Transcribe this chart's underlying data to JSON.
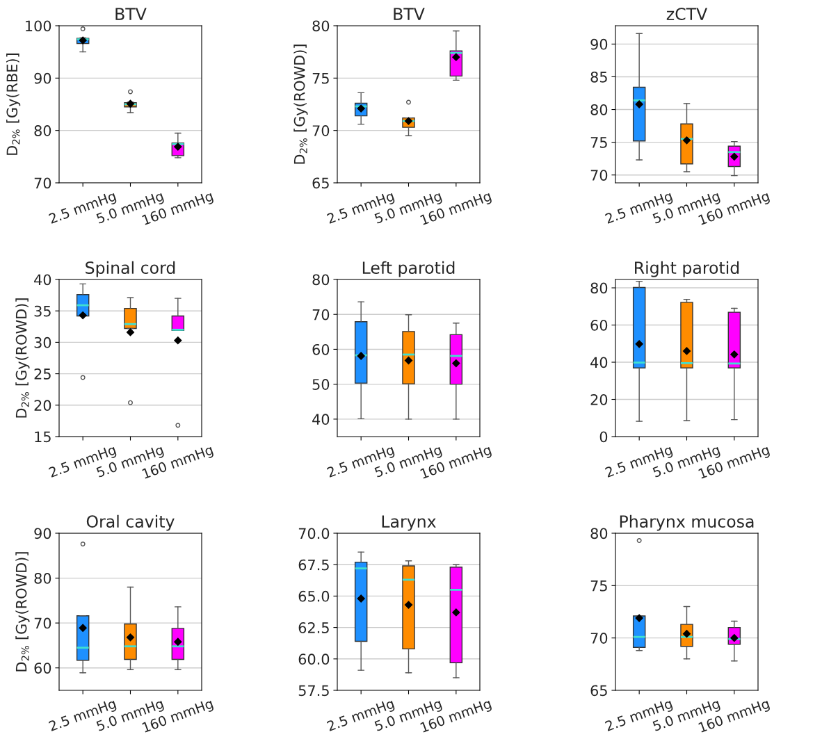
{
  "chart_data": [
    {
      "type": "box",
      "title": "BTV",
      "ylabel": "D$_{2%}$ [Gy(RBE)]",
      "categories": [
        "2.5 mmHg",
        "5.0 mmHg",
        "160 mmHg"
      ],
      "colors": [
        "#1e90ff",
        "#ff8c00",
        "#ff00ff"
      ],
      "ylim": [
        70,
        100
      ],
      "yticks": [
        70,
        80,
        90,
        100
      ],
      "grid": "y",
      "boxes": [
        {
          "low": 95.0,
          "q1": 96.6,
          "median": 97.4,
          "q3": 97.6,
          "high": 97.7,
          "mean": 97.2,
          "outliers": [
            99.4
          ]
        },
        {
          "low": 83.4,
          "q1": 84.5,
          "median": 85.0,
          "q3": 85.3,
          "high": 85.4,
          "mean": 85.1,
          "outliers": [
            87.4
          ]
        },
        {
          "low": 74.8,
          "q1": 75.2,
          "median": 77.4,
          "q3": 77.6,
          "high": 79.5,
          "mean": 76.9
        }
      ]
    },
    {
      "type": "box",
      "title": "BTV",
      "ylabel": "D$_{2%}$ [Gy(ROWD)]",
      "categories": [
        "2.5 mmHg",
        "5.0 mmHg",
        "160 mmHg"
      ],
      "colors": [
        "#1e90ff",
        "#ff8c00",
        "#ff00ff"
      ],
      "ylim": [
        65,
        80
      ],
      "yticks": [
        65,
        70,
        75,
        80
      ],
      "grid": "y",
      "boxes": [
        {
          "low": 70.6,
          "q1": 71.4,
          "median": 72.3,
          "q3": 72.6,
          "high": 73.6,
          "mean": 72.1
        },
        {
          "low": 69.5,
          "q1": 70.3,
          "median": 70.9,
          "q3": 71.2,
          "high": 71.2,
          "mean": 70.9,
          "outliers": [
            72.7
          ]
        },
        {
          "low": 74.8,
          "q1": 75.2,
          "median": 77.4,
          "q3": 77.6,
          "high": 79.5,
          "mean": 77.0
        }
      ]
    },
    {
      "type": "box",
      "title": "zCTV",
      "categories": [
        "2.5 mmHg",
        "5.0 mmHg",
        "160 mmHg"
      ],
      "colors": [
        "#1e90ff",
        "#ff8c00",
        "#ff00ff"
      ],
      "ylim": [
        68.8,
        92.8
      ],
      "yticks": [
        70,
        75,
        80,
        85,
        90
      ],
      "grid": "y",
      "boxes": [
        {
          "low": 72.3,
          "q1": 75.2,
          "median": 81.4,
          "q3": 83.4,
          "high": 91.6,
          "mean": 80.8
        },
        {
          "low": 70.5,
          "q1": 71.7,
          "median": 75.5,
          "q3": 77.8,
          "high": 80.9,
          "mean": 75.3
        },
        {
          "low": 69.9,
          "q1": 71.3,
          "median": 73.5,
          "q3": 74.4,
          "high": 75.1,
          "mean": 72.8
        }
      ]
    },
    {
      "type": "box",
      "title": "Spinal cord",
      "ylabel": "D$_{2%}$ [Gy(ROWD)]",
      "categories": [
        "2.5 mmHg",
        "5.0 mmHg",
        "160 mmHg"
      ],
      "colors": [
        "#1e90ff",
        "#ff8c00",
        "#ff00ff"
      ],
      "ylim": [
        15,
        40
      ],
      "yticks": [
        15,
        20,
        25,
        30,
        35,
        40
      ],
      "grid": "y",
      "boxes": [
        {
          "low": 34.2,
          "q1": 34.2,
          "median": 35.9,
          "q3": 37.6,
          "high": 39.3,
          "mean": 34.3,
          "outliers": [
            24.4
          ]
        },
        {
          "low": 32.2,
          "q1": 32.2,
          "median": 32.9,
          "q3": 35.4,
          "high": 37.1,
          "mean": 31.6,
          "outliers": [
            20.4
          ]
        },
        {
          "low": 31.9,
          "q1": 31.9,
          "median": 32.0,
          "q3": 34.2,
          "high": 37.0,
          "mean": 30.3,
          "outliers": [
            16.8
          ]
        }
      ]
    },
    {
      "type": "box",
      "title": "Left parotid",
      "categories": [
        "2.5 mmHg",
        "5.0 mmHg",
        "160 mmHg"
      ],
      "colors": [
        "#1e90ff",
        "#ff8c00",
        "#ff00ff"
      ],
      "ylim": [
        35,
        80
      ],
      "yticks": [
        40,
        50,
        60,
        70,
        80
      ],
      "grid": "y",
      "boxes": [
        {
          "low": 40.1,
          "q1": 50.3,
          "median": 58.3,
          "q3": 67.9,
          "high": 73.6,
          "mean": 58.1
        },
        {
          "low": 40.0,
          "q1": 50.1,
          "median": 58.5,
          "q3": 65.1,
          "high": 69.9,
          "mean": 56.8
        },
        {
          "low": 40.0,
          "q1": 50.0,
          "median": 58.1,
          "q3": 64.2,
          "high": 67.5,
          "mean": 56.0
        }
      ]
    },
    {
      "type": "box",
      "title": "Right parotid",
      "categories": [
        "2.5 mmHg",
        "5.0 mmHg",
        "160 mmHg"
      ],
      "colors": [
        "#1e90ff",
        "#ff8c00",
        "#ff00ff"
      ],
      "ylim": [
        0,
        84.5
      ],
      "yticks": [
        0,
        20,
        40,
        60,
        80
      ],
      "grid": "y",
      "boxes": [
        {
          "low": 8.2,
          "q1": 36.9,
          "median": 39.8,
          "q3": 80.2,
          "high": 83.5,
          "mean": 49.8
        },
        {
          "low": 8.6,
          "q1": 36.9,
          "median": 39.5,
          "q3": 72.2,
          "high": 73.8,
          "mean": 46.0
        },
        {
          "low": 9.1,
          "q1": 36.9,
          "median": 39.3,
          "q3": 66.9,
          "high": 69.0,
          "mean": 44.2
        }
      ]
    },
    {
      "type": "box",
      "title": "Oral cavity",
      "ylabel": "D$_{2%}$ [Gy(ROWD)]",
      "categories": [
        "2.5 mmHg",
        "5.0 mmHg",
        "160 mmHg"
      ],
      "colors": [
        "#1e90ff",
        "#ff8c00",
        "#ff00ff"
      ],
      "ylim": [
        55,
        90
      ],
      "yticks": [
        60,
        70,
        80,
        90
      ],
      "grid": "y",
      "boxes": [
        {
          "low": 58.9,
          "q1": 61.7,
          "median": 64.5,
          "q3": 71.6,
          "high": 71.6,
          "mean": 68.9,
          "outliers": [
            87.6
          ]
        },
        {
          "low": 59.6,
          "q1": 61.9,
          "median": 64.8,
          "q3": 69.8,
          "high": 78.0,
          "mean": 66.8
        },
        {
          "low": 59.6,
          "q1": 61.9,
          "median": 64.8,
          "q3": 68.8,
          "high": 73.6,
          "mean": 65.8
        }
      ]
    },
    {
      "type": "box",
      "title": "Larynx",
      "categories": [
        "2.5 mmHg",
        "5.0 mmHg",
        "160 mmHg"
      ],
      "colors": [
        "#1e90ff",
        "#ff8c00",
        "#ff00ff"
      ],
      "ylim": [
        57.5,
        70
      ],
      "yticks": [
        57.5,
        {
          "value": 60,
          "label": "60.0"
        },
        62.5,
        {
          "value": 65,
          "label": "65.0"
        },
        67.5,
        {
          "value": 70,
          "label": "70.0"
        }
      ],
      "grid": "y",
      "boxes": [
        {
          "low": 59.1,
          "q1": 61.4,
          "median": 67.2,
          "q3": 67.7,
          "high": 68.5,
          "mean": 64.8
        },
        {
          "low": 58.9,
          "q1": 60.8,
          "median": 66.3,
          "q3": 67.4,
          "high": 67.8,
          "mean": 64.3
        },
        {
          "low": 58.5,
          "q1": 59.7,
          "median": 65.5,
          "q3": 67.3,
          "high": 67.5,
          "mean": 63.7
        }
      ]
    },
    {
      "type": "box",
      "title": "Pharynx mucosa",
      "categories": [
        "2.5 mmHg",
        "5.0 mmHg",
        "160 mmHg"
      ],
      "colors": [
        "#1e90ff",
        "#ff8c00",
        "#ff00ff"
      ],
      "ylim": [
        65,
        80
      ],
      "yticks": [
        65,
        70,
        75,
        80
      ],
      "grid": "y",
      "boxes": [
        {
          "low": 68.8,
          "q1": 69.1,
          "median": 70.1,
          "q3": 72.1,
          "high": 72.1,
          "mean": 71.9,
          "outliers": [
            79.3
          ]
        },
        {
          "low": 68.0,
          "q1": 69.2,
          "median": 70.1,
          "q3": 71.3,
          "high": 73.0,
          "mean": 70.4
        },
        {
          "low": 67.8,
          "q1": 69.4,
          "median": 69.9,
          "q3": 71.0,
          "high": 71.6,
          "mean": 70.0
        }
      ]
    }
  ]
}
